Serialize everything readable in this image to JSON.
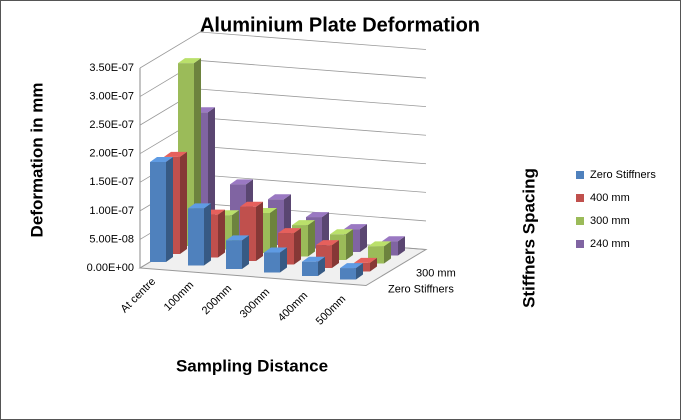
{
  "chart_data": {
    "type": "bar3d",
    "title": "Aluminium Plate Deformation",
    "x_label": "Sampling Distance",
    "y_label": "Deformation in mm",
    "legend_title": "Stiffners Spacing",
    "legend_position": "right",
    "categories": [
      "At centre",
      "100mm",
      "200mm",
      "300mm",
      "400mm",
      "500mm"
    ],
    "series": [
      {
        "name": "Zero Stiffners",
        "color": "#4f81bd",
        "values": [
          1.75e-07,
          1e-07,
          5e-08,
          3.5e-08,
          2.5e-08,
          2e-08
        ]
      },
      {
        "name": "400 mm",
        "color": "#c0504d",
        "values": [
          1.7e-07,
          7.5e-08,
          9.5e-08,
          5.5e-08,
          4e-08,
          1.5e-08
        ]
      },
      {
        "name": "300 mm",
        "color": "#9bbb59",
        "values": [
          3.2e-07,
          6e-08,
          7e-08,
          5.5e-08,
          4.5e-08,
          3e-08
        ]
      },
      {
        "name": "240 mm",
        "color": "#8064a2",
        "values": [
          2.2e-07,
          1e-07,
          8e-08,
          5.5e-08,
          4e-08,
          2.5e-08
        ]
      }
    ],
    "depth_labels": [
      {
        "series": 0
      },
      {
        "series": 2
      }
    ],
    "ylim": [
      0,
      3.5e-07
    ],
    "yticks": [
      {
        "value": 0,
        "label": "0.00E+00"
      },
      {
        "value": 5e-08,
        "label": "5.00E-08"
      },
      {
        "value": 1e-07,
        "label": "1.00E-07"
      },
      {
        "value": 1.5e-07,
        "label": "1.50E-07"
      },
      {
        "value": 2e-07,
        "label": "2.00E-07"
      },
      {
        "value": 2.5e-07,
        "label": "2.50E-07"
      },
      {
        "value": 3e-07,
        "label": "3.00E-07"
      },
      {
        "value": 3.5e-07,
        "label": "3.50E-07"
      }
    ],
    "grid": true
  }
}
